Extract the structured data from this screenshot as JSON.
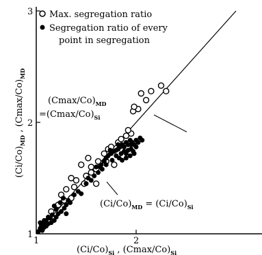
{
  "chart_data": {
    "type": "scatter",
    "xlabel": "(Ci/Co)Si ,  (Cmax/Co)Si",
    "ylabel": "(Ci/Co)MD , (Cmax/Co)MD",
    "xlim": [
      1,
      3
    ],
    "ylim": [
      1,
      3
    ],
    "x_ticks": [
      "1",
      "2"
    ],
    "y_ticks": [
      "1",
      "2",
      "3"
    ],
    "grid": false,
    "legend_position": "top-left",
    "legend": [
      {
        "marker": "open-circle",
        "label": "Max. segregation ratio"
      },
      {
        "marker": "filled-circle",
        "label": "Segregation ratio of every",
        "label_line2": "point in segregation"
      }
    ],
    "reference_line": {
      "from": [
        1,
        1
      ],
      "to": [
        3,
        3
      ]
    },
    "annotations": [
      {
        "text_line1": "(Cmax/Co)",
        "sub1": "MD",
        "text_line2": "=(Cmax/Co)",
        "sub2": "Si",
        "target": [
          1.92,
          1.93
        ]
      },
      {
        "text": "(Ci/Co)",
        "sub1": "MD",
        "text_b": " = (Ci/Co)",
        "sub2": "Si",
        "target": [
          1.6,
          1.55
        ]
      }
    ],
    "series": [
      {
        "marker": "open-circle",
        "values": [
          [
            1.06,
            1.05
          ],
          [
            1.12,
            1.12
          ],
          [
            1.15,
            1.2
          ],
          [
            1.22,
            1.26
          ],
          [
            1.28,
            1.3
          ],
          [
            1.25,
            1.35
          ],
          [
            1.35,
            1.32
          ],
          [
            1.3,
            1.4
          ],
          [
            1.38,
            1.42
          ],
          [
            1.4,
            1.48
          ],
          [
            1.5,
            1.52
          ],
          [
            1.55,
            1.55
          ],
          [
            1.6,
            1.58
          ],
          [
            1.45,
            1.62
          ],
          [
            1.52,
            1.68
          ],
          [
            1.62,
            1.65
          ],
          [
            1.68,
            1.72
          ],
          [
            1.72,
            1.76
          ],
          [
            1.75,
            1.78
          ],
          [
            1.82,
            1.82
          ],
          [
            1.85,
            1.85
          ],
          [
            1.9,
            1.88
          ],
          [
            1.95,
            1.9
          ],
          [
            1.92,
            1.93
          ],
          [
            1.97,
            2.1
          ],
          [
            2.02,
            2.12
          ],
          [
            1.98,
            2.14
          ],
          [
            2.05,
            2.26
          ],
          [
            2.1,
            2.2
          ],
          [
            2.15,
            2.28
          ],
          [
            2.25,
            2.33
          ],
          [
            2.3,
            2.28
          ],
          [
            1.6,
            1.45
          ],
          [
            1.7,
            1.65
          ],
          [
            1.48,
            1.45
          ],
          [
            1.35,
            1.5
          ],
          [
            1.55,
            1.6
          ],
          [
            1.78,
            1.62
          ]
        ]
      },
      {
        "marker": "filled-circle",
        "values": [
          [
            1.02,
            1.02
          ],
          [
            1.04,
            1.05
          ],
          [
            1.06,
            1.03
          ],
          [
            1.08,
            1.06
          ],
          [
            1.05,
            1.08
          ],
          [
            1.1,
            1.07
          ],
          [
            1.12,
            1.09
          ],
          [
            1.07,
            1.1
          ],
          [
            1.15,
            1.1
          ],
          [
            1.1,
            1.12
          ],
          [
            1.14,
            1.14
          ],
          [
            1.18,
            1.12
          ],
          [
            1.2,
            1.15
          ],
          [
            1.16,
            1.17
          ],
          [
            1.22,
            1.18
          ],
          [
            1.25,
            1.2
          ],
          [
            1.2,
            1.22
          ],
          [
            1.28,
            1.23
          ],
          [
            1.18,
            1.25
          ],
          [
            1.3,
            1.26
          ],
          [
            1.24,
            1.28
          ],
          [
            1.32,
            1.3
          ],
          [
            1.27,
            1.32
          ],
          [
            1.34,
            1.28
          ],
          [
            1.12,
            1.15
          ],
          [
            1.08,
            1.12
          ],
          [
            1.04,
            1.1
          ],
          [
            1.3,
            1.18
          ],
          [
            1.38,
            1.35
          ],
          [
            1.42,
            1.38
          ],
          [
            1.45,
            1.36
          ],
          [
            1.5,
            1.45
          ],
          [
            1.55,
            1.48
          ],
          [
            1.52,
            1.5
          ],
          [
            1.58,
            1.52
          ],
          [
            1.62,
            1.55
          ],
          [
            1.6,
            1.6
          ],
          [
            1.65,
            1.62
          ],
          [
            1.68,
            1.65
          ],
          [
            1.7,
            1.68
          ],
          [
            1.72,
            1.7
          ],
          [
            1.75,
            1.72
          ],
          [
            1.78,
            1.74
          ],
          [
            1.8,
            1.75
          ],
          [
            1.82,
            1.76
          ],
          [
            1.84,
            1.78
          ],
          [
            1.86,
            1.8
          ],
          [
            1.88,
            1.78
          ],
          [
            1.9,
            1.82
          ],
          [
            1.92,
            1.8
          ],
          [
            1.94,
            1.84
          ],
          [
            1.96,
            1.82
          ],
          [
            1.98,
            1.8
          ],
          [
            2.0,
            1.84
          ],
          [
            2.02,
            1.82
          ],
          [
            2.04,
            1.86
          ],
          [
            2.06,
            1.84
          ],
          [
            1.85,
            1.72
          ],
          [
            1.88,
            1.74
          ],
          [
            1.9,
            1.72
          ],
          [
            1.92,
            1.75
          ],
          [
            1.95,
            1.76
          ],
          [
            1.97,
            1.74
          ],
          [
            1.8,
            1.7
          ],
          [
            1.83,
            1.68
          ],
          [
            1.76,
            1.66
          ],
          [
            1.7,
            1.62
          ],
          [
            1.66,
            1.58
          ],
          [
            1.64,
            1.6
          ],
          [
            1.86,
            1.66
          ],
          [
            1.9,
            1.68
          ],
          [
            1.94,
            1.7
          ],
          [
            1.98,
            1.72
          ],
          [
            2.0,
            1.78
          ],
          [
            1.95,
            1.8
          ],
          [
            1.82,
            1.8
          ],
          [
            1.74,
            1.75
          ]
        ]
      }
    ]
  }
}
